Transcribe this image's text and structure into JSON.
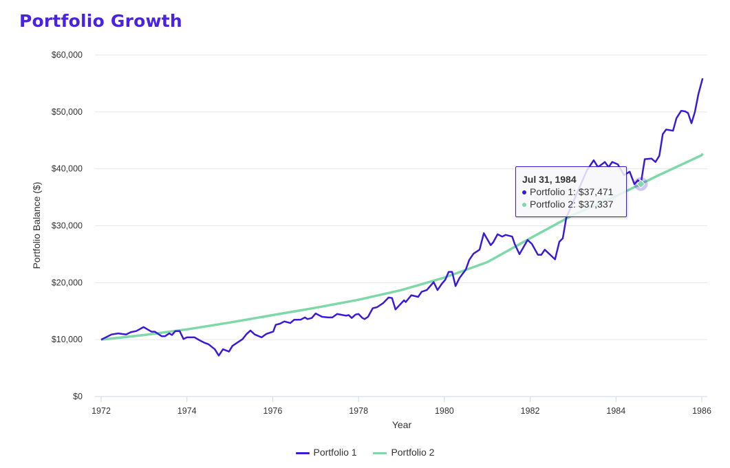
{
  "title": "Portfolio Growth",
  "chart_data": {
    "type": "line",
    "title": "Portfolio Growth",
    "xlabel": "Year",
    "ylabel": "Portfolio Balance ($)",
    "xlim": [
      1972,
      1986.05
    ],
    "ylim": [
      0,
      60000
    ],
    "x_ticks": [
      "1972",
      "1974",
      "1976",
      "1978",
      "1980",
      "1982",
      "1984",
      "1986"
    ],
    "y_ticks": [
      "$0",
      "$10,000",
      "$20,000",
      "$30,000",
      "$40,000",
      "$50,000",
      "$60,000"
    ],
    "grid": true,
    "legend_position": "bottom",
    "series": [
      {
        "name": "Portfolio 1",
        "color": "#3b19d9",
        "points": [
          [
            1972.0,
            10000
          ],
          [
            1972.24,
            10900
          ],
          [
            1972.4,
            11100
          ],
          [
            1972.58,
            10900
          ],
          [
            1972.69,
            11300
          ],
          [
            1972.82,
            11500
          ],
          [
            1972.99,
            12200
          ],
          [
            1973.17,
            11400
          ],
          [
            1973.25,
            11400
          ],
          [
            1973.41,
            10600
          ],
          [
            1973.49,
            10600
          ],
          [
            1973.59,
            11100
          ],
          [
            1973.65,
            10800
          ],
          [
            1973.73,
            11500
          ],
          [
            1973.83,
            11500
          ],
          [
            1973.92,
            10100
          ],
          [
            1974.0,
            10400
          ],
          [
            1974.18,
            10400
          ],
          [
            1974.29,
            9900
          ],
          [
            1974.42,
            9400
          ],
          [
            1974.5,
            9200
          ],
          [
            1974.65,
            8300
          ],
          [
            1974.74,
            7200
          ],
          [
            1974.84,
            8300
          ],
          [
            1974.98,
            7900
          ],
          [
            1975.06,
            8900
          ],
          [
            1975.18,
            9500
          ],
          [
            1975.3,
            10100
          ],
          [
            1975.38,
            10900
          ],
          [
            1975.48,
            11600
          ],
          [
            1975.58,
            10900
          ],
          [
            1975.74,
            10400
          ],
          [
            1975.85,
            11000
          ],
          [
            1975.93,
            11200
          ],
          [
            1976.01,
            11400
          ],
          [
            1976.07,
            12600
          ],
          [
            1976.17,
            12800
          ],
          [
            1976.27,
            13200
          ],
          [
            1976.41,
            12900
          ],
          [
            1976.5,
            13500
          ],
          [
            1976.65,
            13500
          ],
          [
            1976.75,
            13900
          ],
          [
            1976.81,
            13600
          ],
          [
            1976.91,
            13800
          ],
          [
            1977.0,
            14600
          ],
          [
            1977.15,
            14000
          ],
          [
            1977.29,
            13900
          ],
          [
            1977.39,
            13900
          ],
          [
            1977.5,
            14500
          ],
          [
            1977.71,
            14200
          ],
          [
            1977.77,
            14300
          ],
          [
            1977.84,
            13800
          ],
          [
            1977.93,
            14400
          ],
          [
            1978.0,
            14500
          ],
          [
            1978.09,
            13800
          ],
          [
            1978.14,
            13600
          ],
          [
            1978.22,
            14000
          ],
          [
            1978.33,
            15500
          ],
          [
            1978.43,
            15700
          ],
          [
            1978.57,
            16400
          ],
          [
            1978.7,
            17400
          ],
          [
            1978.78,
            17300
          ],
          [
            1978.86,
            15300
          ],
          [
            1979.06,
            16900
          ],
          [
            1979.1,
            16600
          ],
          [
            1979.23,
            17800
          ],
          [
            1979.39,
            17500
          ],
          [
            1979.47,
            18400
          ],
          [
            1979.59,
            18700
          ],
          [
            1979.75,
            20100
          ],
          [
            1979.84,
            18700
          ],
          [
            1979.94,
            19800
          ],
          [
            1980.02,
            20500
          ],
          [
            1980.1,
            21900
          ],
          [
            1980.18,
            21900
          ],
          [
            1980.26,
            19400
          ],
          [
            1980.35,
            20800
          ],
          [
            1980.5,
            22300
          ],
          [
            1980.58,
            24000
          ],
          [
            1980.68,
            25100
          ],
          [
            1980.82,
            25800
          ],
          [
            1980.92,
            28700
          ],
          [
            1981.08,
            26600
          ],
          [
            1981.14,
            27100
          ],
          [
            1981.24,
            28500
          ],
          [
            1981.35,
            28100
          ],
          [
            1981.43,
            28400
          ],
          [
            1981.58,
            28100
          ],
          [
            1981.64,
            26800
          ],
          [
            1981.75,
            25000
          ],
          [
            1981.94,
            27500
          ],
          [
            1982.04,
            26800
          ],
          [
            1982.18,
            24900
          ],
          [
            1982.26,
            24900
          ],
          [
            1982.34,
            25800
          ],
          [
            1982.58,
            24100
          ],
          [
            1982.68,
            27200
          ],
          [
            1982.76,
            27800
          ],
          [
            1982.84,
            31400
          ],
          [
            1982.91,
            32600
          ],
          [
            1983.32,
            39700
          ],
          [
            1983.48,
            41500
          ],
          [
            1983.58,
            40300
          ],
          [
            1983.74,
            41200
          ],
          [
            1983.83,
            40300
          ],
          [
            1983.91,
            41200
          ],
          [
            1984.04,
            40800
          ],
          [
            1984.19,
            38900
          ],
          [
            1984.32,
            39500
          ],
          [
            1984.43,
            37300
          ],
          [
            1984.51,
            38000
          ],
          [
            1984.58,
            37471
          ],
          [
            1984.67,
            41700
          ],
          [
            1984.83,
            41800
          ],
          [
            1984.92,
            41200
          ],
          [
            1985.01,
            42300
          ],
          [
            1985.09,
            46100
          ],
          [
            1985.17,
            46900
          ],
          [
            1985.33,
            46700
          ],
          [
            1985.41,
            48900
          ],
          [
            1985.52,
            50200
          ],
          [
            1985.61,
            50100
          ],
          [
            1985.68,
            49800
          ],
          [
            1985.76,
            48000
          ],
          [
            1985.84,
            50000
          ],
          [
            1985.92,
            53100
          ],
          [
            1986.02,
            55900
          ]
        ]
      },
      {
        "name": "Portfolio 2",
        "color": "#7fd8a8",
        "points": [
          [
            1972,
            10000
          ],
          [
            1973,
            10800
          ],
          [
            1974,
            11800
          ],
          [
            1975,
            13000
          ],
          [
            1976,
            14300
          ],
          [
            1977,
            15600
          ],
          [
            1978,
            17000
          ],
          [
            1979,
            18700
          ],
          [
            1980,
            20900
          ],
          [
            1981,
            23600
          ],
          [
            1982,
            27800
          ],
          [
            1983,
            31900
          ],
          [
            1984,
            35200
          ],
          [
            1984.58,
            37337
          ],
          [
            1985,
            38900
          ],
          [
            1986,
            42400
          ],
          [
            1986.02,
            42700
          ]
        ]
      }
    ]
  },
  "tooltip": {
    "date": "Jul 31, 1984",
    "hover_x": 1984.58,
    "rows": [
      {
        "label": "Portfolio 1: $37,471",
        "color": "#3b19d9"
      },
      {
        "label": "Portfolio 2: $37,337",
        "color": "#7fd8a8"
      }
    ]
  },
  "legend": [
    {
      "label": "Portfolio 1",
      "color": "#3b19d9"
    },
    {
      "label": "Portfolio 2",
      "color": "#7fd8a8"
    }
  ],
  "colors": {
    "title": "#4a22e3",
    "grid": "#e6e6e6",
    "axis": "#ccd6eb"
  }
}
